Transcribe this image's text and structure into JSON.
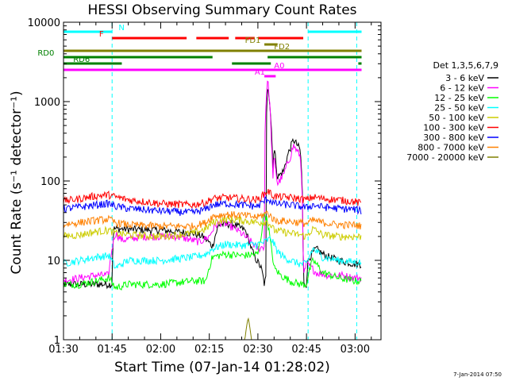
{
  "chart_data": {
    "type": "line",
    "title": "HESSI Observing Summary Count Rates",
    "xlabel": "Start Time (07-Jan-14 01:28:02)",
    "ylabel": "Count Rate (s⁻¹ detector⁻¹)",
    "x_unit": "minutes of day (UT)",
    "x_range": [
      90,
      188
    ],
    "x_ticks": [
      {
        "value": 90,
        "label": "01:30"
      },
      {
        "value": 105,
        "label": "01:45"
      },
      {
        "value": 120,
        "label": "02:00"
      },
      {
        "value": 135,
        "label": "02:15"
      },
      {
        "value": 150,
        "label": "02:30"
      },
      {
        "value": 165,
        "label": "02:45"
      },
      {
        "value": 180,
        "label": "03:00"
      }
    ],
    "y_scale": "log",
    "y_range": [
      1,
      10000
    ],
    "y_ticks": [
      {
        "value": 1,
        "label": "1"
      },
      {
        "value": 10,
        "label": "10"
      },
      {
        "value": 100,
        "label": "100"
      },
      {
        "value": 1000,
        "label": "1000"
      },
      {
        "value": 10000,
        "label": "10000"
      }
    ],
    "legend_title": "Det 1,3,5,6,7,9",
    "legend_position": "right",
    "series": [
      {
        "name": "3 - 6 keV",
        "color": "#000000",
        "x": [
          89,
          105,
          105.5,
          120,
          130,
          133,
          136,
          138,
          142,
          146,
          148,
          149,
          151,
          152,
          152.5,
          153,
          154,
          154.6,
          155,
          156,
          158,
          160,
          161,
          162,
          163,
          164,
          165,
          165.5,
          166,
          168,
          170,
          172,
          175,
          180,
          182
        ],
        "y": [
          5,
          5,
          25,
          24,
          22,
          20,
          15,
          28,
          29,
          24,
          14,
          11,
          8,
          5,
          6,
          1700,
          600,
          120,
          260,
          110,
          135,
          260,
          330,
          290,
          250,
          5,
          5,
          10,
          11,
          14,
          12,
          11,
          10,
          9,
          9
        ]
      },
      {
        "name": "6 - 12 keV",
        "color": "#ff00ff",
        "x": [
          89,
          95,
          100,
          104,
          106,
          108,
          115,
          125,
          132,
          135,
          137,
          139,
          143,
          146,
          150,
          152,
          153,
          154,
          154.6,
          155,
          156,
          158,
          160,
          161,
          162,
          163,
          164,
          165,
          166,
          168,
          172,
          176,
          180,
          182
        ],
        "y": [
          5.5,
          6,
          6.5,
          6.5,
          22,
          18,
          20,
          20,
          17,
          20,
          28,
          30,
          25,
          20,
          14,
          15,
          1900,
          450,
          80,
          200,
          90,
          120,
          200,
          280,
          240,
          210,
          6,
          9,
          8.5,
          7,
          6.5,
          6.5,
          6,
          6
        ]
      },
      {
        "name": "12 - 25 keV",
        "color": "#00ff00",
        "x": [
          89,
          95,
          100,
          104,
          106,
          110,
          120,
          130,
          134,
          136,
          140,
          145,
          150,
          151,
          152,
          153,
          154,
          155,
          157,
          160,
          163,
          165,
          167,
          170,
          175,
          180,
          182
        ],
        "y": [
          5,
          5,
          5.5,
          6,
          4.5,
          5,
          5,
          5.5,
          5.5,
          11,
          12,
          11.5,
          12,
          20,
          40,
          30,
          15,
          8,
          6.5,
          5.5,
          5,
          5,
          10,
          7,
          6,
          5.5,
          5.5
        ]
      },
      {
        "name": "25 - 50 keV",
        "color": "#00ffff",
        "x": [
          89,
          95,
          100,
          104,
          106,
          110,
          120,
          130,
          134,
          136,
          140,
          145,
          150,
          152,
          154,
          156,
          158,
          160,
          163,
          165,
          167,
          170,
          175,
          180,
          182
        ],
        "y": [
          9,
          10,
          11,
          11.5,
          8,
          10,
          10,
          11,
          12,
          14,
          16,
          15.5,
          16,
          17,
          19,
          13,
          11,
          10,
          9,
          9,
          14,
          11,
          10,
          9.5,
          9.5
        ]
      },
      {
        "name": "50 - 100 keV",
        "color": "#cccc00",
        "x": [
          89,
          95,
          100,
          104,
          106,
          110,
          120,
          130,
          134,
          136,
          140,
          145,
          150,
          153,
          155,
          160,
          163,
          165,
          167,
          170,
          175,
          180,
          182
        ],
        "y": [
          20,
          21,
          23,
          24,
          22,
          21,
          20,
          22,
          25,
          30,
          33,
          32,
          30,
          31,
          24,
          22,
          21,
          20,
          25,
          21,
          20,
          20,
          20
        ]
      },
      {
        "name": "100 - 300 keV",
        "color": "#ff0000",
        "x": [
          89,
          95,
          100,
          104,
          106,
          110,
          120,
          130,
          134,
          136,
          140,
          145,
          150,
          153,
          155,
          160,
          163,
          165,
          167,
          170,
          175,
          180,
          182
        ],
        "y": [
          55,
          60,
          65,
          67,
          63,
          58,
          52,
          50,
          54,
          60,
          62,
          60,
          58,
          75,
          64,
          62,
          60,
          58,
          63,
          60,
          58,
          55,
          52
        ]
      },
      {
        "name": "300 - 800 keV",
        "color": "#0000ff",
        "x": [
          89,
          95,
          100,
          104,
          106,
          110,
          120,
          130,
          134,
          136,
          140,
          145,
          150,
          153,
          155,
          160,
          163,
          165,
          167,
          170,
          175,
          180,
          182
        ],
        "y": [
          44,
          47,
          50,
          52,
          48,
          45,
          42,
          40,
          44,
          50,
          52,
          50,
          48,
          60,
          52,
          50,
          48,
          46,
          50,
          47,
          45,
          44,
          42
        ]
      },
      {
        "name": "800 - 7000 keV",
        "color": "#ff8000",
        "x": [
          89,
          95,
          100,
          104,
          106,
          110,
          120,
          130,
          134,
          136,
          140,
          145,
          150,
          153,
          155,
          160,
          163,
          165,
          167,
          170,
          175,
          180,
          182
        ],
        "y": [
          28,
          30,
          32,
          33,
          30,
          28,
          27,
          27,
          30,
          36,
          38,
          37,
          35,
          40,
          32,
          31,
          30,
          29,
          32,
          30,
          28,
          28,
          27
        ]
      },
      {
        "name": "7000 - 20000 keV",
        "color": "#808000",
        "x": [
          89,
          145,
          146,
          147,
          148,
          149,
          182
        ],
        "y": [
          1,
          1,
          1,
          1.9,
          1,
          1,
          1
        ]
      }
    ],
    "attenuator_change_times": [
      105,
      165.5,
      180.5
    ],
    "flags": [
      {
        "label": "N",
        "color": "#00ffff",
        "level": 1,
        "segments": [
          [
            89,
            105
          ],
          [
            165.5,
            182
          ]
        ],
        "label_at": 107
      },
      {
        "label": "F",
        "color": "#ff0000",
        "level": 2,
        "segments": [
          [
            105,
            128
          ],
          [
            131,
            141
          ],
          [
            143,
            149
          ],
          [
            150,
            164
          ]
        ],
        "label_at": 101
      },
      {
        "label": "FD1",
        "color": "#808000",
        "level": 3,
        "segments": [
          [
            152,
            156
          ]
        ],
        "label_at": 146
      },
      {
        "label": "FD2",
        "color": "#808000",
        "level": 4,
        "segments": [
          [
            89,
            182
          ]
        ],
        "label_at": 155
      },
      {
        "label": "RD0",
        "color": "#008000",
        "level": 5,
        "segments": [
          [
            89,
            136
          ],
          [
            153,
            182
          ]
        ],
        "label_at": 82
      },
      {
        "label": "RD6",
        "color": "#008000",
        "level": 6,
        "segments": [
          [
            89,
            108
          ],
          [
            142,
            154
          ],
          [
            181,
            182
          ]
        ],
        "label_at": 93
      },
      {
        "label": "A0",
        "color": "#ff00ff",
        "level": 7,
        "segments": [
          [
            89,
            182
          ]
        ],
        "label_at": 155
      },
      {
        "label": "A1",
        "color": "#ff00ff",
        "level": 8,
        "segments": [
          [
            152,
            155.5
          ]
        ],
        "label_at": 149
      }
    ],
    "grid": false
  },
  "timestamp": "7-Jan-2014 07:50"
}
